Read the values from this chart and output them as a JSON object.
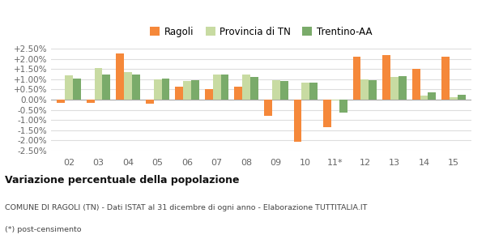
{
  "categories": [
    "02",
    "03",
    "04",
    "05",
    "06",
    "07",
    "08",
    "09",
    "10",
    "11*",
    "12",
    "13",
    "14",
    "15"
  ],
  "ragoli": [
    -0.0015,
    -0.0015,
    0.0225,
    -0.002,
    0.0065,
    0.005,
    0.0065,
    -0.008,
    -0.0205,
    -0.0135,
    0.021,
    0.022,
    0.015,
    0.021
  ],
  "provincia": [
    0.012,
    0.0155,
    0.0135,
    0.01,
    0.009,
    0.0125,
    0.0125,
    0.0095,
    0.0085,
    -0.0005,
    0.01,
    0.011,
    0.002,
    0.001
  ],
  "trentino": [
    0.0105,
    0.0125,
    0.0125,
    0.0105,
    0.0095,
    0.0125,
    0.011,
    0.009,
    0.0085,
    -0.0065,
    0.0095,
    0.0115,
    0.0035,
    0.0025
  ],
  "ragoli_color": "#f5883a",
  "provincia_color": "#c8dba2",
  "trentino_color": "#7aab6a",
  "bg_color": "#ffffff",
  "grid_color": "#dddddd",
  "ylim": [
    -0.025,
    0.025
  ],
  "yticks": [
    -0.025,
    -0.02,
    -0.015,
    -0.01,
    -0.005,
    0.0,
    0.005,
    0.01,
    0.015,
    0.02,
    0.025
  ],
  "title": "Variazione percentuale della popolazione",
  "subtitle": "COMUNE DI RAGOLI (TN) - Dati ISTAT al 31 dicembre di ogni anno - Elaborazione TUTTITALIA.IT",
  "footnote": "(*) post-censimento",
  "legend_labels": [
    "Ragoli",
    "Provincia di TN",
    "Trentino-AA"
  ],
  "bar_width": 0.27
}
